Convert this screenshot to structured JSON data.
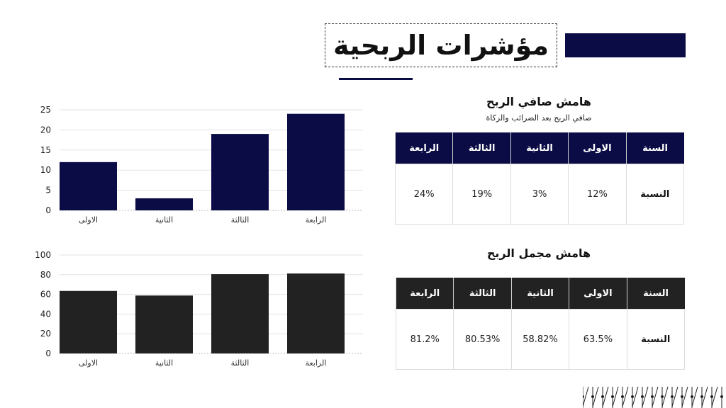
{
  "title": "مؤشرات الربحية",
  "net_margin": {
    "title": "هامش صافي الربح",
    "subtitle": "صافي الربح بعد الضرائب والزكاة",
    "headers": [
      "السنة",
      "الاولى",
      "الثانية",
      "الثالثة",
      "الرابعة"
    ],
    "row_label": "النسبة",
    "values": [
      "12%",
      "3%",
      "19%",
      "24%"
    ]
  },
  "gross_margin": {
    "title": "هامش مجمل الربح",
    "headers": [
      "السنة",
      "الاولى",
      "الثانية",
      "الثالثة",
      "الرابعة"
    ],
    "row_label": "النسبة",
    "values": [
      "63.5%",
      "58.82%",
      "80.53%",
      "81.2%"
    ]
  },
  "colors": {
    "navy": "#0b0c45",
    "dark": "#222222"
  },
  "chart_data": [
    {
      "type": "bar",
      "categories": [
        "الاولى",
        "الثانية",
        "الثالثة",
        "الرابعة"
      ],
      "values": [
        12,
        3,
        19,
        24
      ],
      "ylim": [
        0,
        25
      ],
      "yticks": [
        0,
        5,
        10,
        15,
        20,
        25
      ],
      "grid": true,
      "color": "#0b0c45"
    },
    {
      "type": "bar",
      "categories": [
        "الاولى",
        "الثانية",
        "الثالثة",
        "الرابعة"
      ],
      "values": [
        63.5,
        58.82,
        80.53,
        81.2
      ],
      "ylim": [
        0,
        100
      ],
      "yticks": [
        0,
        20,
        40,
        60,
        80,
        100
      ],
      "grid": true,
      "color": "#222222"
    }
  ]
}
